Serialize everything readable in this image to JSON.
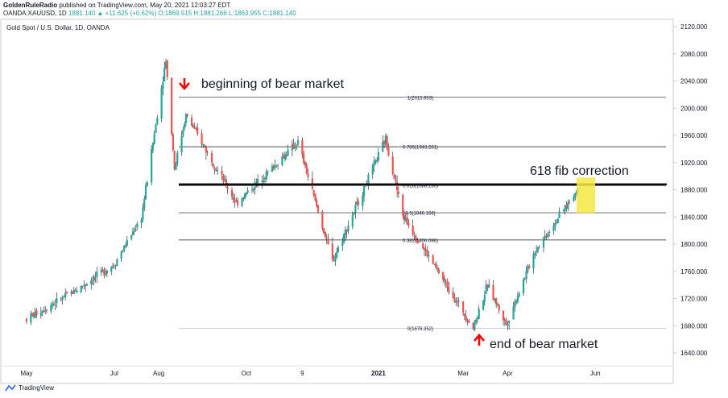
{
  "header": {
    "author": "GoldenRuleRadio",
    "published_text": "published on TradingView.com, May 20, 2021 12:03:27 EDT",
    "symbol_line": "OANDA:XAUUSD, 1D",
    "last_price": "1881.140",
    "change": "▲ +11.625 (+0.62%)",
    "open": "O:1869.515",
    "high": "H:1881.266",
    "low": "L:1863.955",
    "close": "C:1881.140"
  },
  "chart_title": "Gold Spot / U.S. Dollar, 1D, OANDA",
  "footer": {
    "brand": "TradingView"
  },
  "colors": {
    "up": "#26a69a",
    "down": "#ef5350",
    "wick": "#131722",
    "arrow": "#ff0000",
    "highlight": "#f5e642"
  },
  "chart_data": {
    "type": "candlestick",
    "ylim": [
      1630,
      2130
    ],
    "y_ticks": [
      "2120.000",
      "2080.000",
      "2040.000",
      "2000.000",
      "1960.000",
      "1920.000",
      "1880.000",
      "1840.000",
      "1800.000",
      "1760.000",
      "1720.000",
      "1680.000",
      "1640.000"
    ],
    "x_ticks": [
      "May",
      "Jul",
      "Aug",
      "Oct",
      "9",
      "2021",
      "Mar",
      "Apr",
      "Jun"
    ],
    "key_points": [
      {
        "date": "2020-05-01",
        "price": 1690
      },
      {
        "date": "2020-06-01",
        "price": 1728
      },
      {
        "date": "2020-07-01",
        "price": 1770
      },
      {
        "date": "2020-07-20",
        "price": 1840
      },
      {
        "date": "2020-08-06",
        "price": 2072
      },
      {
        "date": "2020-08-12",
        "price": 1912
      },
      {
        "date": "2020-08-20",
        "price": 1990
      },
      {
        "date": "2020-09-24",
        "price": 1860
      },
      {
        "date": "2020-11-06",
        "price": 1950
      },
      {
        "date": "2020-11-30",
        "price": 1775
      },
      {
        "date": "2021-01-06",
        "price": 1955
      },
      {
        "date": "2021-01-18",
        "price": 1842
      },
      {
        "date": "2021-03-08",
        "price": 1677
      },
      {
        "date": "2021-03-18",
        "price": 1740
      },
      {
        "date": "2021-03-31",
        "price": 1682
      },
      {
        "date": "2021-04-20",
        "price": 1790
      },
      {
        "date": "2021-05-20",
        "price": 1881
      }
    ],
    "fib_levels": [
      {
        "label": "1(2015.953)",
        "price": 2015.953
      },
      {
        "label": "0.786(1943.281)",
        "price": 1943.281
      },
      {
        "label": "0.618(1886.230)",
        "price": 1886.23
      },
      {
        "label": "0.5(1846.168)",
        "price": 1846.168
      },
      {
        "label": "0.382(1806.086)",
        "price": 1806.086
      },
      {
        "label": "0(1676.352)",
        "price": 1676.352
      }
    ],
    "annotations": {
      "top": "beginning of bear market",
      "bottom": "end of bear market",
      "fib": "618 fib correction"
    }
  }
}
